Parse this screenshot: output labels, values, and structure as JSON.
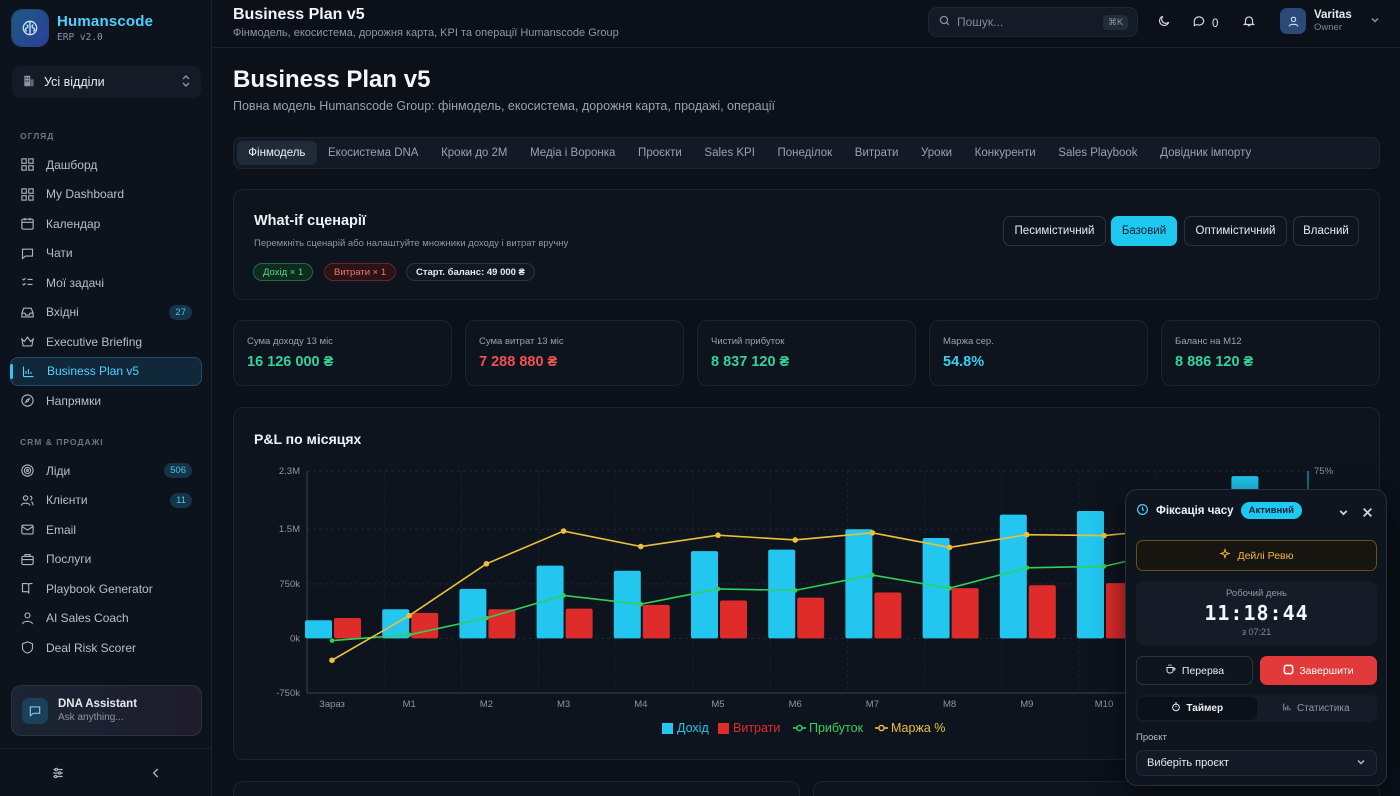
{
  "app": {
    "name": "Humanscode",
    "version": "ERP v2.0"
  },
  "department_selector": {
    "value": "Усі відділи"
  },
  "sidebar": {
    "section_overview": "ОГЛЯД",
    "items": [
      {
        "label": "Дашборд",
        "icon": "grid-icon"
      },
      {
        "label": "My Dashboard",
        "icon": "grid-icon"
      },
      {
        "label": "Календар",
        "icon": "calendar-icon"
      },
      {
        "label": "Чати",
        "icon": "chat-icon"
      },
      {
        "label": "Мої задачі",
        "icon": "checklist-icon"
      },
      {
        "label": "Вхідні",
        "icon": "inbox-icon",
        "badge": "27"
      },
      {
        "label": "Executive Briefing",
        "icon": "crown-icon"
      },
      {
        "label": "Business Plan v5",
        "icon": "bar-chart-icon",
        "active": true
      },
      {
        "label": "Напрямки",
        "icon": "compass-icon"
      }
    ],
    "section_crm": "CRM & ПРОДАЖІ",
    "crm_items": [
      {
        "label": "Ліди",
        "icon": "target-icon",
        "badge": "506"
      },
      {
        "label": "Клієнти",
        "icon": "users-icon",
        "badge": "11"
      },
      {
        "label": "Email",
        "icon": "mail-icon"
      },
      {
        "label": "Послуги",
        "icon": "briefcase-icon"
      },
      {
        "label": "Playbook Generator",
        "icon": "book-icon"
      },
      {
        "label": "AI Sales Coach",
        "icon": "person-icon"
      },
      {
        "label": "Deal Risk Scorer",
        "icon": "shield-icon"
      }
    ],
    "assistant": {
      "title": "DNA Assistant",
      "subtitle": "Ask anything..."
    }
  },
  "topbar": {
    "title": "Business Plan v5",
    "subtitle": "Фінмодель, екосистема, дорожня карта, KPI та операції Humanscode Group",
    "search_placeholder": "Пошук...",
    "search_shortcut": "⌘K",
    "chat_count": "0",
    "user": {
      "name": "Varitas",
      "role": "Owner"
    }
  },
  "page": {
    "title": "Business Plan v5",
    "subtitle": "Повна модель Humanscode Group: фінмодель, екосистема, дорожня карта, продажі, операції",
    "tabs": [
      "Фінмодель",
      "Екосистема DNA",
      "Кроки до 2M",
      "Медіа і Воронка",
      "Проєкти",
      "Sales KPI",
      "Понеділок",
      "Витрати",
      "Уроки",
      "Конкуренти",
      "Sales Playbook",
      "Довідник імпорту"
    ],
    "active_tab": 0
  },
  "whatif": {
    "title": "What-if сценарії",
    "subtitle": "Перемкніть сценарій або налаштуйте множники доходу і витрат вручну",
    "pill_income": "Дохід × 1",
    "pill_costs": "Витрати × 1",
    "pill_balance": "Старт. баланс: 49 000 ₴",
    "scenarios": [
      "Песимістичний",
      "Базовий",
      "Оптимістичний",
      "Власний"
    ],
    "active_scenario": 1
  },
  "kpis": [
    {
      "label": "Сума доходу 13 міс",
      "value": "16 126 000 ₴",
      "color": "#34d399"
    },
    {
      "label": "Сума витрат 13 міс",
      "value": "7 288 880 ₴",
      "color": "#f05252"
    },
    {
      "label": "Чистий прибуток",
      "value": "8 837 120 ₴",
      "color": "#34d399"
    },
    {
      "label": "Маржа сер.",
      "value": "54.8%",
      "color": "#38cff5"
    },
    {
      "label": "Баланс на М12",
      "value": "8 886 120 ₴",
      "color": "#34d399"
    }
  ],
  "chart_data": {
    "type": "bar",
    "title": "P&L по місяцях",
    "categories": [
      "Зараз",
      "M1",
      "M2",
      "M3",
      "M4",
      "M5",
      "M6",
      "M7",
      "M8",
      "M9",
      "M10",
      "M11",
      "M12"
    ],
    "ylim": [
      -750000,
      2300000
    ],
    "y_ticks": [
      "2.3M",
      "1.5M",
      "750k",
      "0k",
      "-750k"
    ],
    "y2_ticks": [
      "75%"
    ],
    "colors": {
      "income": "#22c6ee",
      "costs": "#e02b2b",
      "profit": "#2fd15a",
      "margin": "#e9c13c"
    },
    "series": [
      {
        "name": "Дохід",
        "kind": "bar",
        "values": [
          250000,
          400000,
          680000,
          1000000,
          930000,
          1200000,
          1220000,
          1500000,
          1380000,
          1700000,
          1750000,
          2030000,
          2230000
        ]
      },
      {
        "name": "Витрати",
        "kind": "bar",
        "values": [
          280000,
          350000,
          400000,
          410000,
          460000,
          520000,
          560000,
          630000,
          690000,
          730000,
          760000,
          800000,
          840000
        ]
      },
      {
        "name": "Прибуток",
        "kind": "line",
        "values": [
          -30000,
          50000,
          280000,
          590000,
          470000,
          680000,
          660000,
          870000,
          690000,
          970000,
          990000,
          1230000,
          1390000
        ]
      },
      {
        "name": "Маржа %",
        "kind": "line",
        "axis": "right",
        "values": [
          -12,
          12.5,
          41,
          59,
          50.5,
          56.7,
          54.1,
          58,
          50,
          57,
          56.5,
          60.6,
          62.3
        ]
      }
    ]
  },
  "time_widget": {
    "title": "Фіксація часу",
    "status": "Активний",
    "daily_review": "Дейлі Ревю",
    "workday_label": "Робочий день",
    "time": "11:18:44",
    "since": "з 07:21",
    "break_label": "Перерва",
    "finish_label": "Завершити",
    "seg_timer": "Таймер",
    "seg_stats": "Статистика",
    "project_label": "Проєкт",
    "project_select": "Виберіть проєкт"
  }
}
